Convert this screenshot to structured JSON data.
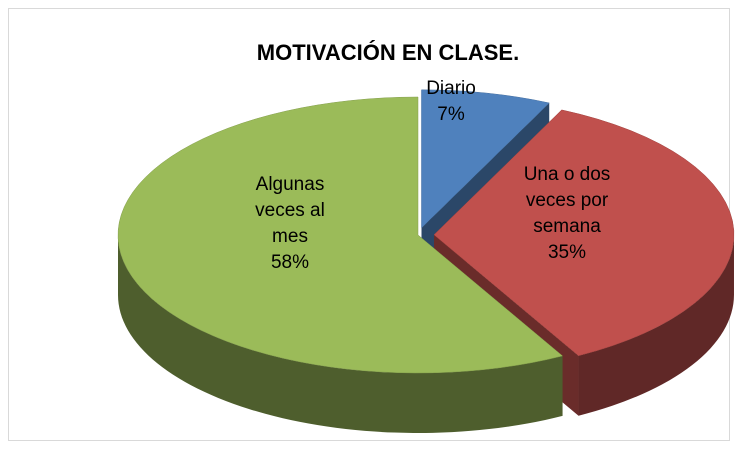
{
  "chart_data": {
    "type": "pie",
    "title": "MOTIVACIÓN EN CLASE.",
    "categories": [
      "Diario",
      "Una o dos veces por semana",
      "Algunas veces al mes"
    ],
    "values": [
      7,
      35,
      58
    ],
    "value_labels": [
      "7%",
      "35%",
      "58%"
    ],
    "colors": [
      "#4f81bd",
      "#c0504d",
      "#9bbb59"
    ]
  }
}
